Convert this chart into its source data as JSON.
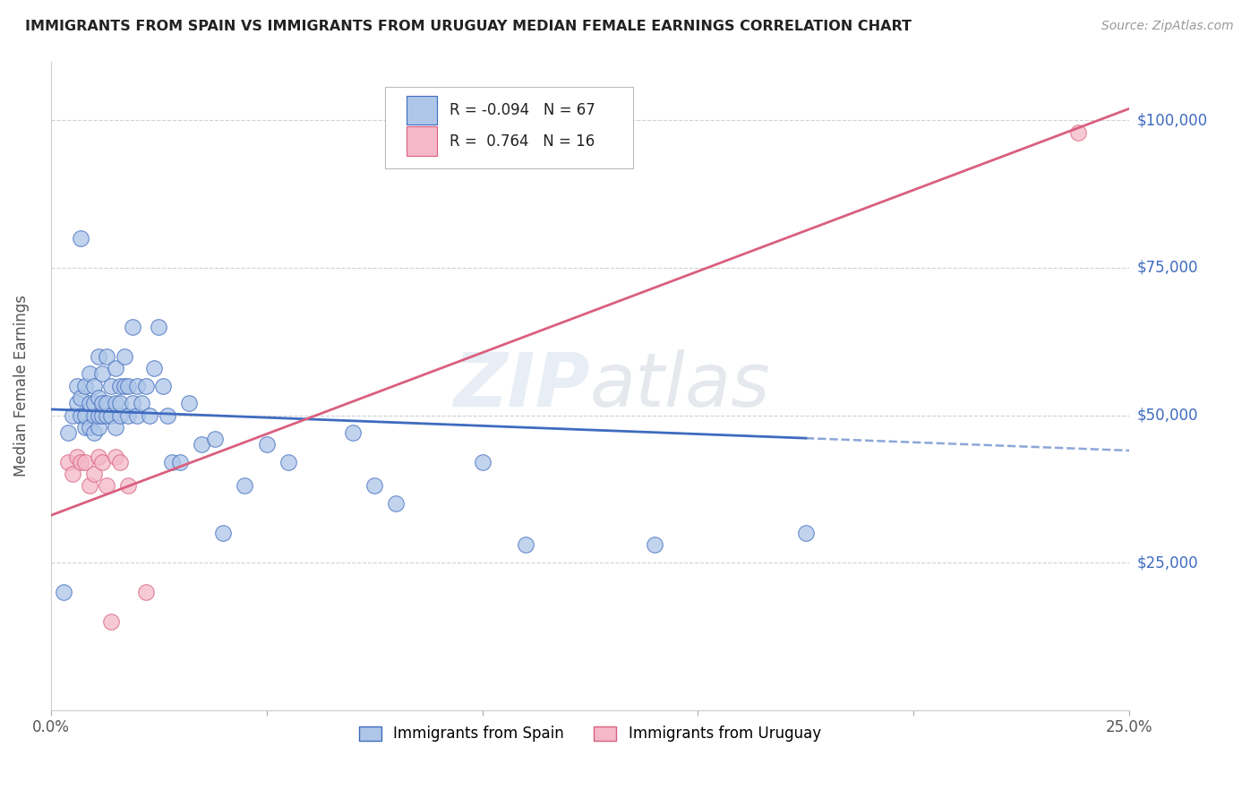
{
  "title": "IMMIGRANTS FROM SPAIN VS IMMIGRANTS FROM URUGUAY MEDIAN FEMALE EARNINGS CORRELATION CHART",
  "source": "Source: ZipAtlas.com",
  "ylabel": "Median Female Earnings",
  "xlim": [
    0.0,
    0.25
  ],
  "ylim": [
    0,
    110000
  ],
  "color_spain": "#aec6e8",
  "color_uruguay": "#f4b8c8",
  "line_color_spain": "#3f6bbf",
  "line_color_uruguay": "#d95f7f",
  "bg_color": "#ffffff",
  "grid_color": "#cccccc",
  "title_color": "#222222",
  "legend_R1": "-0.094",
  "legend_N1": "67",
  "legend_R2": "0.764",
  "legend_N2": "16",
  "spain_x": [
    0.003,
    0.004,
    0.005,
    0.006,
    0.006,
    0.007,
    0.007,
    0.007,
    0.008,
    0.008,
    0.008,
    0.009,
    0.009,
    0.009,
    0.01,
    0.01,
    0.01,
    0.01,
    0.011,
    0.011,
    0.011,
    0.011,
    0.012,
    0.012,
    0.012,
    0.013,
    0.013,
    0.013,
    0.014,
    0.014,
    0.015,
    0.015,
    0.015,
    0.016,
    0.016,
    0.016,
    0.017,
    0.017,
    0.018,
    0.018,
    0.019,
    0.019,
    0.02,
    0.02,
    0.021,
    0.022,
    0.023,
    0.024,
    0.025,
    0.026,
    0.027,
    0.028,
    0.03,
    0.032,
    0.035,
    0.038,
    0.04,
    0.045,
    0.05,
    0.055,
    0.07,
    0.075,
    0.08,
    0.1,
    0.11,
    0.14,
    0.175
  ],
  "spain_y": [
    20000,
    47000,
    50000,
    52000,
    55000,
    50000,
    53000,
    80000,
    48000,
    50000,
    55000,
    48000,
    52000,
    57000,
    47000,
    50000,
    52000,
    55000,
    48000,
    50000,
    53000,
    60000,
    50000,
    52000,
    57000,
    50000,
    52000,
    60000,
    50000,
    55000,
    48000,
    52000,
    58000,
    50000,
    52000,
    55000,
    55000,
    60000,
    50000,
    55000,
    52000,
    65000,
    50000,
    55000,
    52000,
    55000,
    50000,
    58000,
    65000,
    55000,
    50000,
    42000,
    42000,
    52000,
    45000,
    46000,
    30000,
    38000,
    45000,
    42000,
    47000,
    38000,
    35000,
    42000,
    28000,
    28000,
    30000
  ],
  "uruguay_x": [
    0.004,
    0.005,
    0.006,
    0.007,
    0.008,
    0.009,
    0.01,
    0.011,
    0.012,
    0.013,
    0.014,
    0.015,
    0.016,
    0.018,
    0.022,
    0.238
  ],
  "uruguay_y": [
    42000,
    40000,
    43000,
    42000,
    42000,
    38000,
    40000,
    43000,
    42000,
    38000,
    15000,
    43000,
    42000,
    38000,
    20000,
    98000
  ],
  "spain_line_x0": 0.0,
  "spain_line_x_solid_end": 0.175,
  "spain_line_x1": 0.25,
  "spain_line_y0": 51000,
  "spain_line_y1": 44000,
  "uruguay_line_x0": 0.0,
  "uruguay_line_x1": 0.25,
  "uruguay_line_y0": 33000,
  "uruguay_line_y1": 102000
}
